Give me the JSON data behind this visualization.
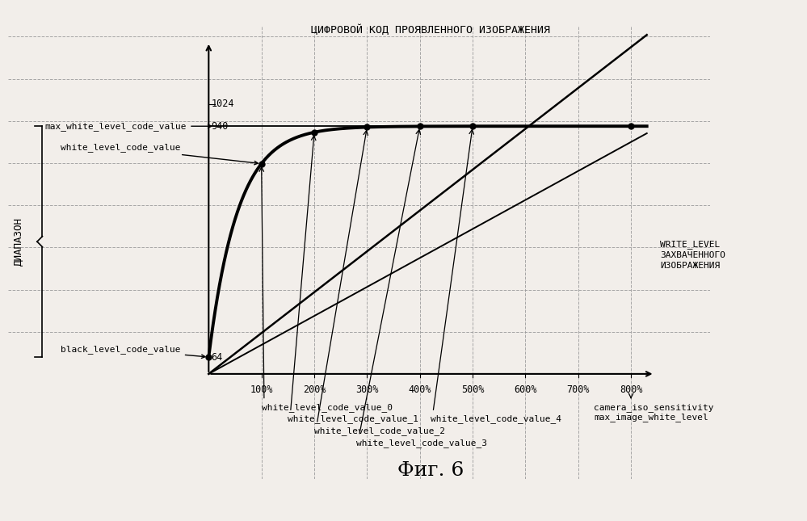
{
  "title": "ЦИФРОВОЙ КОД ПРОЯВЛЕННОГО ИЗОБРАЖЕНИЯ",
  "xlabel_line1": "WRITE_LEVEL",
  "xlabel_line2": "ЗАХВАЧЕННОГО",
  "xlabel_line3": "ИЗОБРАЖЕНИЯ",
  "ylabel": "ДИАПАЗОН",
  "fig_caption": "Фиг. 6",
  "x_ticks": [
    "100%",
    "200%",
    "300%",
    "400%",
    "500%",
    "600%",
    "700%",
    "800%"
  ],
  "x_tick_vals": [
    1,
    2,
    3,
    4,
    5,
    6,
    7,
    8
  ],
  "xlim": [
    0,
    8.5
  ],
  "ylim": [
    0,
    1280
  ],
  "black_level": 64,
  "max_white_level": 940,
  "y_label_1024": 1024,
  "y_label_940": 940,
  "y_label_64": 64,
  "bg_color": "#f2eeea",
  "line_color": "#000000",
  "grid_color": "#999999",
  "bottom_annotations": [
    "white_level_code_value_0",
    "white_level_code_value_1",
    "white_level_code_value_2",
    "white_level_code_value_3",
    "white_level_code_value_4"
  ],
  "camera_iso_text": [
    "camera_iso_sensitivity",
    "max_image_white_level"
  ],
  "fig_caption_font": 18
}
